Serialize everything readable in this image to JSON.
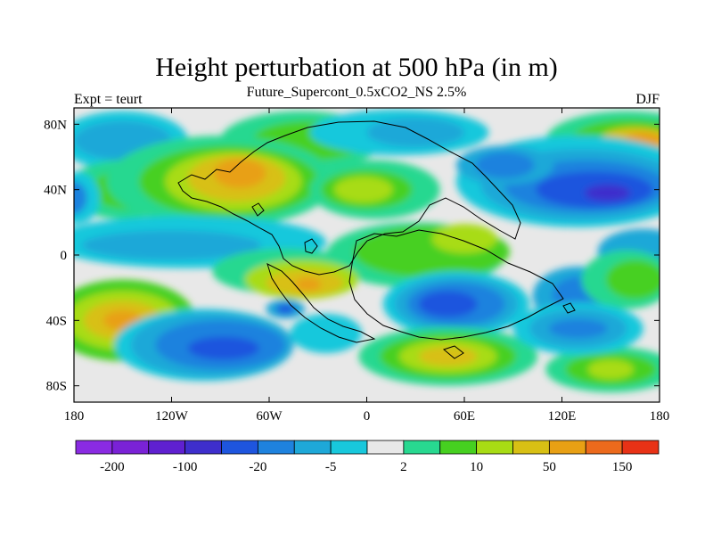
{
  "chart_data": {
    "type": "heatmap",
    "title": "Height perturbation at 500 hPa (in m)",
    "subtitle": "Future_Supercont_0.5xCO2_NS 2.5%",
    "left_label": "Expt = teurt",
    "right_label": "DJF",
    "xlim": [
      -180,
      180
    ],
    "ylim": [
      -90,
      90
    ],
    "x_ticks": [
      {
        "value": -180,
        "label": "180"
      },
      {
        "value": -120,
        "label": "120W"
      },
      {
        "value": -60,
        "label": "60W"
      },
      {
        "value": 0,
        "label": "0"
      },
      {
        "value": 60,
        "label": "60E"
      },
      {
        "value": 120,
        "label": "120E"
      },
      {
        "value": 180,
        "label": "180"
      }
    ],
    "y_ticks": [
      {
        "value": 80,
        "label": "80N"
      },
      {
        "value": 40,
        "label": "40N"
      },
      {
        "value": 0,
        "label": "0"
      },
      {
        "value": -40,
        "label": "40S"
      },
      {
        "value": -80,
        "label": "80S"
      }
    ],
    "colorbar": {
      "colors": [
        "#8a2be2",
        "#7a22d6",
        "#5f20d0",
        "#3e2ecc",
        "#1e55de",
        "#1e82de",
        "#1ea8d8",
        "#18c8dc",
        "#e8e8e8",
        "#28d890",
        "#46d020",
        "#a8dc14",
        "#d8c014",
        "#e8a014",
        "#ec6a1c",
        "#e83216"
      ],
      "tick_labels": [
        {
          "boundary": 1,
          "label": "-200"
        },
        {
          "boundary": 3,
          "label": "-100"
        },
        {
          "boundary": 5,
          "label": "-20"
        },
        {
          "boundary": 7,
          "label": "-5"
        },
        {
          "boundary": 9,
          "label": "2"
        },
        {
          "boundary": 11,
          "label": "10"
        },
        {
          "boundary": 13,
          "label": "50"
        },
        {
          "boundary": 15,
          "label": "150"
        }
      ]
    },
    "field_levels": [
      {
        "level": 8,
        "color": "#e8e8e8"
      },
      {
        "level": 7,
        "color": "#18c8dc"
      },
      {
        "level": 6,
        "color": "#1ea8d8"
      },
      {
        "level": 5,
        "color": "#1e82de"
      },
      {
        "level": 4,
        "color": "#1e55de"
      },
      {
        "level": 3,
        "color": "#3e2ecc"
      },
      {
        "level": 9,
        "color": "#28d890"
      },
      {
        "level": 10,
        "color": "#46d020"
      },
      {
        "level": 11,
        "color": "#a8dc14"
      },
      {
        "level": 12,
        "color": "#d8c014"
      },
      {
        "level": 13,
        "color": "#e8a014"
      }
    ],
    "regions": [
      {
        "level": 7,
        "lon": -150,
        "lat": 70,
        "rlon": 40,
        "rlat": 18
      },
      {
        "level": 6,
        "lon": -150,
        "lat": 70,
        "rlon": 30,
        "rlat": 12
      },
      {
        "level": 9,
        "lon": -150,
        "lat": 40,
        "rlon": 35,
        "rlat": 18
      },
      {
        "level": 10,
        "lon": -145,
        "lat": 40,
        "rlon": 25,
        "rlat": 12
      },
      {
        "level": 9,
        "lon": -40,
        "lat": 70,
        "rlon": 50,
        "rlat": 18
      },
      {
        "level": 10,
        "lon": -35,
        "lat": 70,
        "rlon": 35,
        "rlat": 12
      },
      {
        "level": 9,
        "lon": -90,
        "lat": 45,
        "rlon": 70,
        "rlat": 28
      },
      {
        "level": 10,
        "lon": -85,
        "lat": 45,
        "rlon": 55,
        "rlat": 22
      },
      {
        "level": 11,
        "lon": -82,
        "lat": 45,
        "rlon": 42,
        "rlat": 18
      },
      {
        "level": 12,
        "lon": -80,
        "lat": 47,
        "rlon": 30,
        "rlat": 14
      },
      {
        "level": 13,
        "lon": -78,
        "lat": 50,
        "rlon": 16,
        "rlat": 9
      },
      {
        "level": 9,
        "lon": 5,
        "lat": 40,
        "rlon": 40,
        "rlat": 18
      },
      {
        "level": 10,
        "lon": 0,
        "lat": 40,
        "rlon": 28,
        "rlat": 12
      },
      {
        "level": 11,
        "lon": -2,
        "lat": 40,
        "rlon": 18,
        "rlat": 8
      },
      {
        "level": 7,
        "lon": 20,
        "lat": 75,
        "rlon": 55,
        "rlat": 14
      },
      {
        "level": 6,
        "lon": 30,
        "lat": 75,
        "rlon": 30,
        "rlat": 9
      },
      {
        "level": 9,
        "lon": 160,
        "lat": 70,
        "rlon": 50,
        "rlat": 18
      },
      {
        "level": 10,
        "lon": 162,
        "lat": 70,
        "rlon": 36,
        "rlat": 13
      },
      {
        "level": 12,
        "lon": 165,
        "lat": 70,
        "rlon": 22,
        "rlat": 8
      },
      {
        "level": 13,
        "lon": 170,
        "lat": 70,
        "rlon": 12,
        "rlat": 5
      },
      {
        "level": 7,
        "lon": 130,
        "lat": 45,
        "rlon": 75,
        "rlat": 28
      },
      {
        "level": 6,
        "lon": 132,
        "lat": 43,
        "rlon": 62,
        "rlat": 22
      },
      {
        "level": 5,
        "lon": 135,
        "lat": 42,
        "rlon": 50,
        "rlat": 16
      },
      {
        "level": 4,
        "lon": 140,
        "lat": 40,
        "rlon": 36,
        "rlat": 11
      },
      {
        "level": 3,
        "lon": 148,
        "lat": 38,
        "rlon": 14,
        "rlat": 5
      },
      {
        "level": 6,
        "lon": 85,
        "lat": 55,
        "rlon": 30,
        "rlat": 12
      },
      {
        "level": 5,
        "lon": 85,
        "lat": 55,
        "rlon": 18,
        "rlat": 8
      },
      {
        "level": 7,
        "lon": -178,
        "lat": 35,
        "rlon": 14,
        "rlat": 16
      },
      {
        "level": 5,
        "lon": -180,
        "lat": 35,
        "rlon": 8,
        "rlat": 10
      },
      {
        "level": 7,
        "lon": -110,
        "lat": 8,
        "rlon": 85,
        "rlat": 16
      },
      {
        "level": 6,
        "lon": -120,
        "lat": 6,
        "rlon": 55,
        "rlat": 9
      },
      {
        "level": 6,
        "lon": 170,
        "lat": 2,
        "rlon": 28,
        "rlat": 14
      },
      {
        "level": 9,
        "lon": 30,
        "lat": 0,
        "rlon": 55,
        "rlat": 20
      },
      {
        "level": 10,
        "lon": 40,
        "lat": 2,
        "rlon": 48,
        "rlat": 16
      },
      {
        "level": 11,
        "lon": 60,
        "lat": 10,
        "rlon": 20,
        "rlat": 9
      },
      {
        "level": 9,
        "lon": -50,
        "lat": -10,
        "rlon": 45,
        "rlat": 14
      },
      {
        "level": 11,
        "lon": -40,
        "lat": -15,
        "rlon": 35,
        "rlat": 12
      },
      {
        "level": 12,
        "lon": -38,
        "lat": -17,
        "rlon": 24,
        "rlat": 8
      },
      {
        "level": 13,
        "lon": -36,
        "lat": -18,
        "rlon": 8,
        "rlat": 4
      },
      {
        "level": 7,
        "lon": 55,
        "lat": -30,
        "rlon": 45,
        "rlat": 20
      },
      {
        "level": 6,
        "lon": 55,
        "lat": -30,
        "rlon": 38,
        "rlat": 17
      },
      {
        "level": 5,
        "lon": 55,
        "lat": -30,
        "rlon": 30,
        "rlat": 13
      },
      {
        "level": 4,
        "lon": 50,
        "lat": -30,
        "rlon": 18,
        "rlat": 8
      },
      {
        "level": 6,
        "lon": 130,
        "lat": -25,
        "rlon": 28,
        "rlat": 18
      },
      {
        "level": 5,
        "lon": 132,
        "lat": -25,
        "rlon": 18,
        "rlat": 12
      },
      {
        "level": 9,
        "lon": 160,
        "lat": -15,
        "rlon": 28,
        "rlat": 18
      },
      {
        "level": 10,
        "lon": 165,
        "lat": -15,
        "rlon": 18,
        "rlat": 12
      },
      {
        "level": 10,
        "lon": -150,
        "lat": -40,
        "rlon": 45,
        "rlat": 25
      },
      {
        "level": 11,
        "lon": -150,
        "lat": -40,
        "rlon": 35,
        "rlat": 18
      },
      {
        "level": 12,
        "lon": -150,
        "lat": -40,
        "rlon": 24,
        "rlat": 12
      },
      {
        "level": 13,
        "lon": -150,
        "lat": -40,
        "rlon": 12,
        "rlat": 6
      },
      {
        "level": 9,
        "lon": 50,
        "lat": -62,
        "rlon": 55,
        "rlat": 18
      },
      {
        "level": 10,
        "lon": 50,
        "lat": -62,
        "rlon": 42,
        "rlat": 14
      },
      {
        "level": 11,
        "lon": 50,
        "lat": -62,
        "rlon": 30,
        "rlat": 10
      },
      {
        "level": 12,
        "lon": 50,
        "lat": -62,
        "rlon": 18,
        "rlat": 6
      },
      {
        "level": 9,
        "lon": 150,
        "lat": -70,
        "rlon": 40,
        "rlat": 14
      },
      {
        "level": 10,
        "lon": 150,
        "lat": -70,
        "rlon": 28,
        "rlat": 10
      },
      {
        "level": 11,
        "lon": 150,
        "lat": -70,
        "rlon": 14,
        "rlat": 6
      },
      {
        "level": 7,
        "lon": -100,
        "lat": -55,
        "rlon": 55,
        "rlat": 22
      },
      {
        "level": 6,
        "lon": -95,
        "lat": -55,
        "rlon": 50,
        "rlat": 20
      },
      {
        "level": 5,
        "lon": -90,
        "lat": -55,
        "rlon": 40,
        "rlat": 15
      },
      {
        "level": 4,
        "lon": -88,
        "lat": -57,
        "rlon": 22,
        "rlat": 7
      },
      {
        "level": 7,
        "lon": 130,
        "lat": -45,
        "rlon": 40,
        "rlat": 16
      },
      {
        "level": 6,
        "lon": 130,
        "lat": -45,
        "rlon": 30,
        "rlat": 12
      },
      {
        "level": 5,
        "lon": 130,
        "lat": -45,
        "rlon": 18,
        "rlat": 6
      },
      {
        "level": 6,
        "lon": -50,
        "lat": -33,
        "rlon": 12,
        "rlat": 6
      },
      {
        "level": 4,
        "lon": -50,
        "lat": -33,
        "rlon": 6,
        "rlat": 3
      },
      {
        "level": 7,
        "lon": -25,
        "lat": -48,
        "rlon": 22,
        "rlat": 12
      }
    ]
  }
}
